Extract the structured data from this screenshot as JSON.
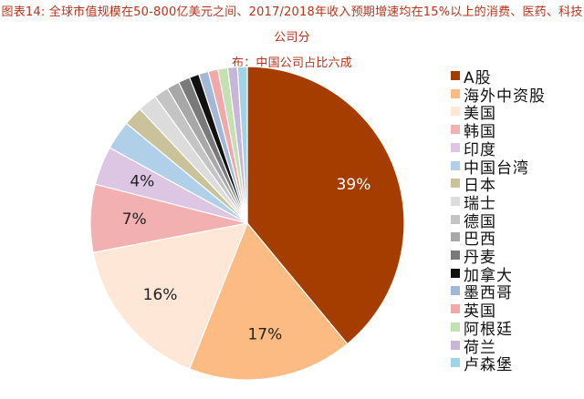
{
  "title_line1": "图表14: 全球市值规模在50-800亿美元之间、2017/2018年收入预期增速均在15%以上的消费、医药、科技公司分",
  "title_line2": "布：中国公司占比六成",
  "chart_data": {
    "type": "pie",
    "title": "图表14: 全球市值规模在50-800亿美元之间、2017/2018年收入预期增速均在15%以上的消费、医药、科技公司分布：中国公司占比六成",
    "legend_position": "right",
    "slices": [
      {
        "name": "A股",
        "value": 39,
        "label": "39%",
        "color": "#a63d00",
        "label_color": "#ffffff"
      },
      {
        "name": "海外中资股",
        "value": 17,
        "label": "17%",
        "color": "#fdbb84",
        "label_color": "#222222"
      },
      {
        "name": "美国",
        "value": 16,
        "label": "16%",
        "color": "#fee7d6",
        "label_color": "#222222"
      },
      {
        "name": "韩国",
        "value": 7,
        "label": "7%",
        "color": "#f2b0b0",
        "label_color": "#222222"
      },
      {
        "name": "印度",
        "value": 4,
        "label": "4%",
        "color": "#dcc6e3",
        "label_color": "#222222"
      },
      {
        "name": "中国台湾",
        "value": 3,
        "label": "",
        "color": "#b0d0ea",
        "label_color": "#222222"
      },
      {
        "name": "日本",
        "value": 2,
        "label": "",
        "color": "#c9c29a",
        "label_color": "#222222"
      },
      {
        "name": "瑞士",
        "value": 2,
        "label": "",
        "color": "#dcdcdc",
        "label_color": "#222222"
      },
      {
        "name": "德国",
        "value": 1.5,
        "label": "",
        "color": "#c4c4c4",
        "label_color": "#222222"
      },
      {
        "name": "巴西",
        "value": 1.3,
        "label": "",
        "color": "#a8a8a8",
        "label_color": "#222222"
      },
      {
        "name": "丹麦",
        "value": 1.2,
        "label": "",
        "color": "#7a7a7a",
        "label_color": "#222222"
      },
      {
        "name": "加拿大",
        "value": 1.0,
        "label": "",
        "color": "#111111",
        "label_color": "#222222"
      },
      {
        "name": "墨西哥",
        "value": 1.0,
        "label": "",
        "color": "#a3b8d6",
        "label_color": "#222222"
      },
      {
        "name": "英国",
        "value": 1.0,
        "label": "",
        "color": "#f0a8a8",
        "label_color": "#222222"
      },
      {
        "name": "阿根廷",
        "value": 1.0,
        "label": "",
        "color": "#c3e0b2",
        "label_color": "#222222"
      },
      {
        "name": "荷兰",
        "value": 1.0,
        "label": "",
        "color": "#c8b6d8",
        "label_color": "#222222"
      },
      {
        "name": "卢森堡",
        "value": 1.0,
        "label": "",
        "color": "#9fd3e6",
        "label_color": "#222222"
      }
    ]
  }
}
